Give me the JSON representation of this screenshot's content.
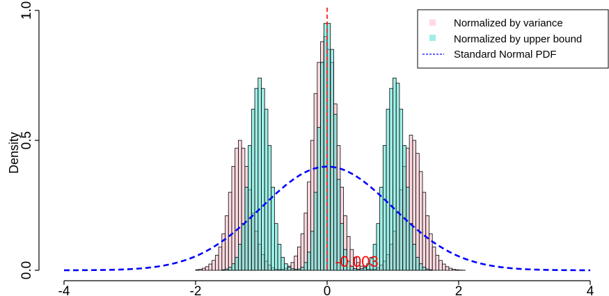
{
  "chart_data": {
    "type": "bar",
    "title": "",
    "xlabel": "",
    "ylabel": "Density",
    "xlim": [
      -4,
      4
    ],
    "ylim": [
      0,
      1.0
    ],
    "x_ticks": [
      -4,
      -2,
      0,
      2,
      4
    ],
    "x_tick_labels": [
      "-4",
      "-2",
      "0",
      "2",
      "4"
    ],
    "y_ticks": [
      0.0,
      0.5,
      1.0
    ],
    "y_tick_labels": [
      "0.0",
      "0.5",
      "1.0"
    ],
    "y_top_label": "1.",
    "grid": false,
    "legend_position": "top-right",
    "bin_width": 0.05,
    "series": [
      {
        "name": "Normalized by variance",
        "kind": "histogram",
        "color": "#FFB6C1",
        "opacity": 0.5,
        "bin_starts": [
          -2.0,
          -1.95,
          -1.9,
          -1.85,
          -1.8,
          -1.75,
          -1.7,
          -1.65,
          -1.6,
          -1.55,
          -1.5,
          -1.45,
          -1.4,
          -1.35,
          -1.3,
          -1.25,
          -1.2,
          -1.15,
          -1.1,
          -1.05,
          -1.0,
          -0.95,
          -0.9,
          -0.85,
          -0.8,
          -0.75,
          -0.7,
          -0.65,
          -0.6,
          -0.55,
          -0.5,
          -0.45,
          -0.4,
          -0.35,
          -0.3,
          -0.25,
          -0.2,
          -0.15,
          -0.1,
          -0.05,
          0.0,
          0.05,
          0.1,
          0.15,
          0.2,
          0.25,
          0.3,
          0.35,
          0.4,
          0.45,
          0.5,
          0.55,
          0.6,
          0.65,
          0.7,
          0.75,
          0.8,
          0.85,
          0.9,
          0.95,
          1.0,
          1.05,
          1.1,
          1.15,
          1.2,
          1.25,
          1.3,
          1.35,
          1.4,
          1.45,
          1.5,
          1.55,
          1.6,
          1.65,
          1.7,
          1.75,
          1.8,
          1.85,
          1.9,
          1.95,
          2.0,
          2.05
        ],
        "values": [
          0.002,
          0.004,
          0.008,
          0.014,
          0.024,
          0.038,
          0.058,
          0.09,
          0.14,
          0.21,
          0.3,
          0.4,
          0.47,
          0.5,
          0.47,
          0.4,
          0.31,
          0.22,
          0.15,
          0.1,
          0.06,
          0.035,
          0.02,
          0.01,
          0.004,
          0.003,
          0.004,
          0.008,
          0.016,
          0.03,
          0.055,
          0.09,
          0.14,
          0.22,
          0.34,
          0.5,
          0.68,
          0.8,
          0.88,
          0.9,
          0.85,
          0.8,
          0.64,
          0.48,
          0.32,
          0.21,
          0.13,
          0.08,
          0.05,
          0.03,
          0.016,
          0.008,
          0.004,
          0.003,
          0.004,
          0.01,
          0.02,
          0.035,
          0.06,
          0.1,
          0.15,
          0.22,
          0.31,
          0.4,
          0.47,
          0.52,
          0.5,
          0.45,
          0.38,
          0.3,
          0.21,
          0.14,
          0.09,
          0.058,
          0.038,
          0.024,
          0.014,
          0.008,
          0.004,
          0.002,
          0.001,
          0.0005
        ]
      },
      {
        "name": "Normalized by upper bound",
        "kind": "histogram",
        "color": "#40E0D0",
        "opacity": 0.5,
        "bin_starts": [
          -1.6,
          -1.55,
          -1.5,
          -1.45,
          -1.4,
          -1.35,
          -1.3,
          -1.25,
          -1.2,
          -1.15,
          -1.1,
          -1.05,
          -1.0,
          -0.95,
          -0.9,
          -0.85,
          -0.8,
          -0.75,
          -0.7,
          -0.65,
          -0.6,
          -0.55,
          -0.5,
          -0.45,
          -0.4,
          -0.35,
          -0.3,
          -0.25,
          -0.2,
          -0.15,
          -0.1,
          -0.05,
          0.0,
          0.05,
          0.1,
          0.15,
          0.2,
          0.25,
          0.3,
          0.35,
          0.4,
          0.45,
          0.5,
          0.55,
          0.6,
          0.65,
          0.7,
          0.75,
          0.8,
          0.85,
          0.9,
          0.95,
          1.0,
          1.05,
          1.1,
          1.15,
          1.2,
          1.25,
          1.3,
          1.35,
          1.4,
          1.45,
          1.5,
          1.55
        ],
        "values": [
          0.002,
          0.005,
          0.012,
          0.025,
          0.05,
          0.1,
          0.18,
          0.32,
          0.48,
          0.62,
          0.7,
          0.74,
          0.7,
          0.62,
          0.48,
          0.32,
          0.18,
          0.1,
          0.05,
          0.025,
          0.012,
          0.006,
          0.004,
          0.005,
          0.012,
          0.03,
          0.07,
          0.15,
          0.3,
          0.55,
          0.8,
          0.95,
          0.95,
          0.85,
          0.6,
          0.35,
          0.18,
          0.08,
          0.035,
          0.015,
          0.007,
          0.004,
          0.006,
          0.012,
          0.025,
          0.05,
          0.1,
          0.18,
          0.32,
          0.48,
          0.62,
          0.7,
          0.74,
          0.72,
          0.62,
          0.48,
          0.32,
          0.18,
          0.1,
          0.05,
          0.025,
          0.012,
          0.005,
          0.002
        ]
      },
      {
        "name": "Standard Normal PDF",
        "kind": "curve",
        "color": "#0000FF",
        "dash": "dashed",
        "function": "standard_normal_pdf"
      }
    ],
    "annotations": [
      {
        "type": "vline",
        "x": 0,
        "color": "#FF0000",
        "dash": "dashed"
      },
      {
        "type": "text",
        "text": "-0.003",
        "x": 0.45,
        "y": 0.035,
        "color": "#FF0000"
      }
    ]
  }
}
